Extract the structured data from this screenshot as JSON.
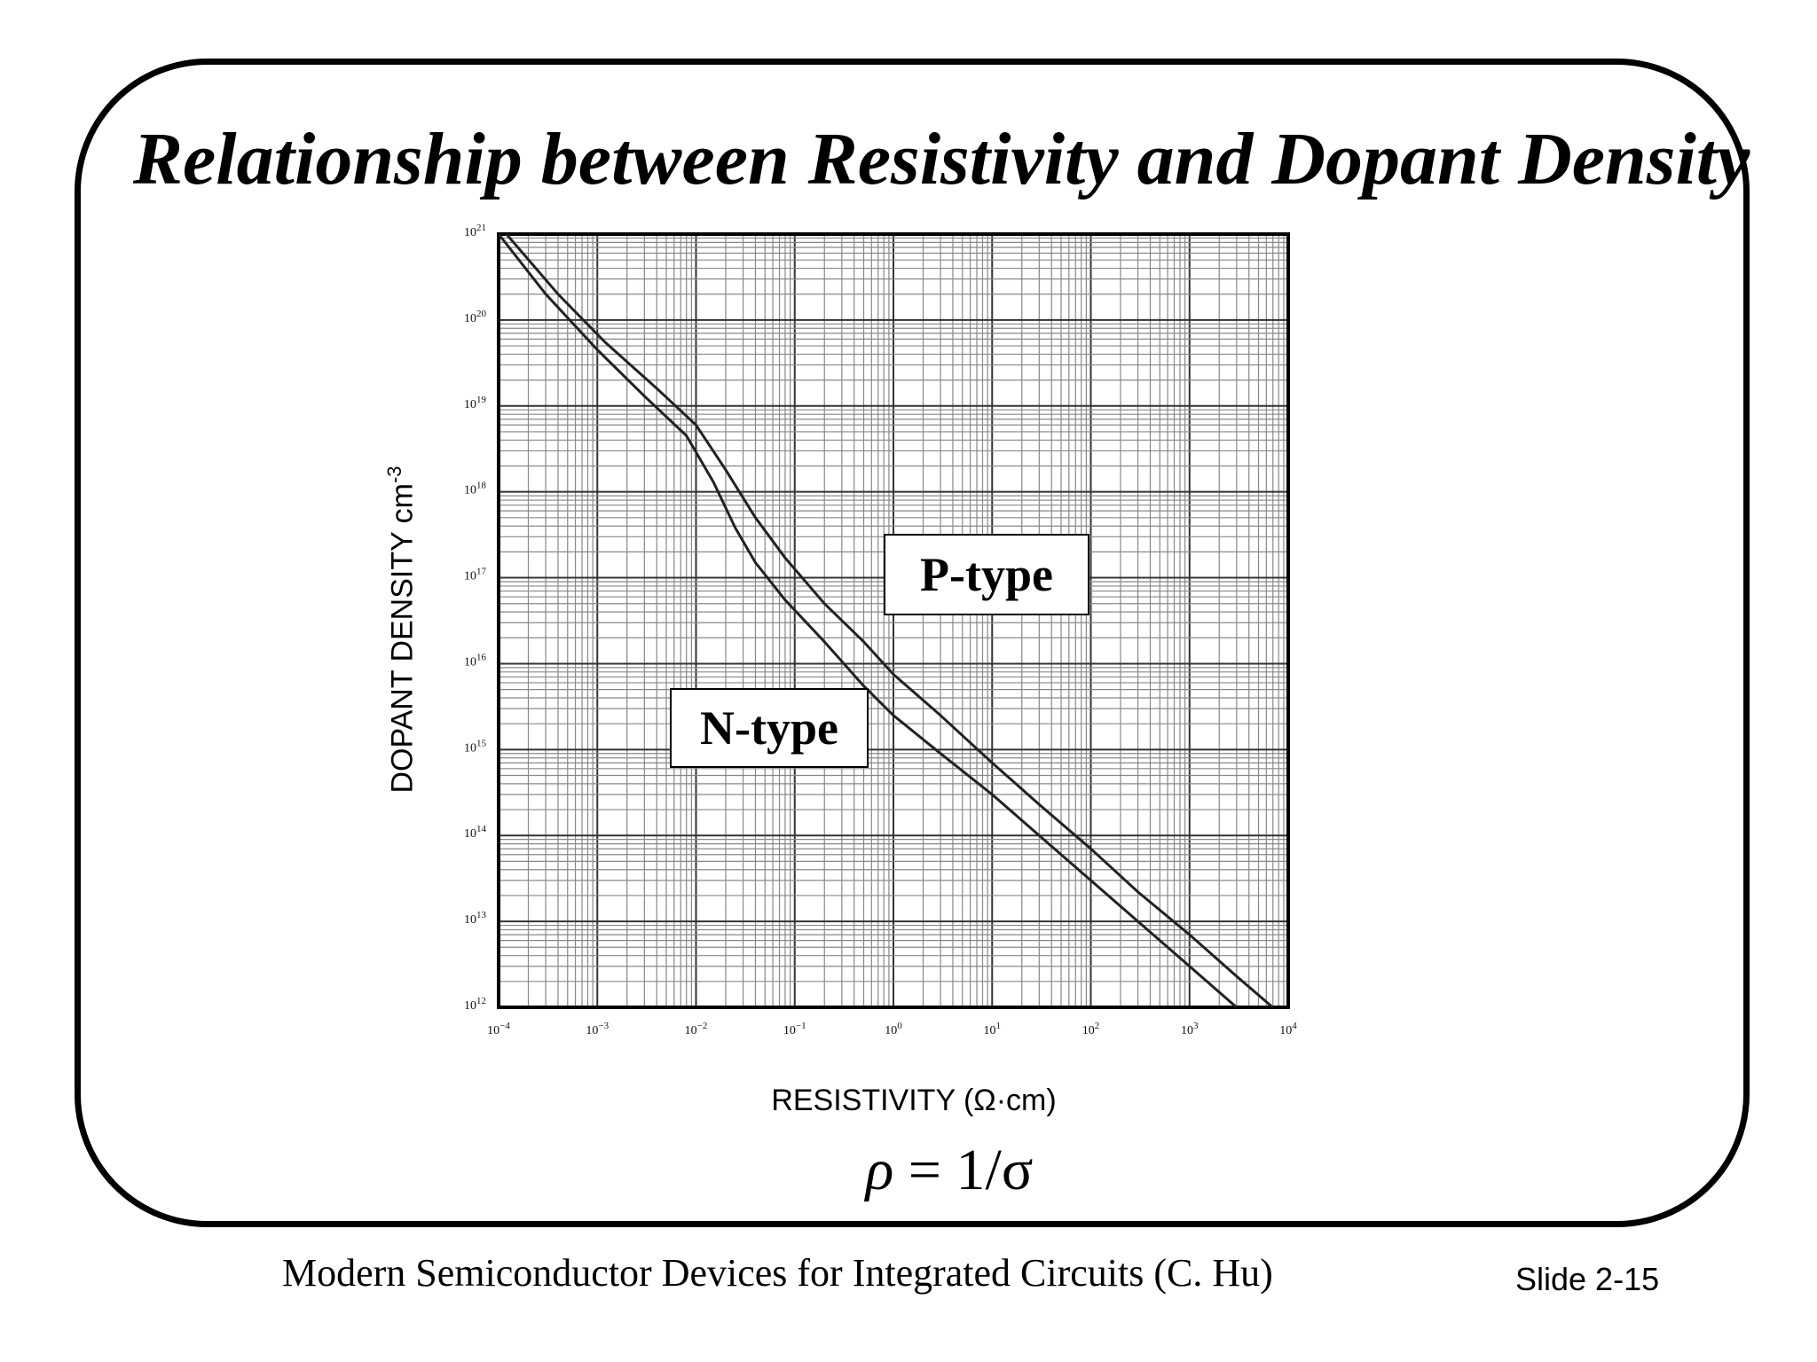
{
  "slide": {
    "title": "Relationship between Resistivity and Dopant Density",
    "formula_lhs": "ρ",
    "formula_rhs": "= 1/σ",
    "footer": "Modern Semiconductor Devices for Integrated Circuits (C. Hu)",
    "slide_number": "Slide 2-15"
  },
  "chart_data": {
    "type": "line",
    "xlabel": "RESISTIVITY  (Ω·cm)",
    "ylabel": "DOPANT DENSITY cm",
    "ylabel_exp": "-3",
    "xscale": "log",
    "yscale": "log",
    "xlim": [
      0.0001,
      10000
    ],
    "ylim": [
      1000000000000.0,
      1e+21
    ],
    "grid": true,
    "x_ticks": [
      {
        "base": "10",
        "exp": "−4",
        "value": 0.0001
      },
      {
        "base": "10",
        "exp": "−3",
        "value": 0.001
      },
      {
        "base": "10",
        "exp": "−2",
        "value": 0.01
      },
      {
        "base": "10",
        "exp": "−1",
        "value": 0.1
      },
      {
        "base": "10",
        "exp": "0",
        "value": 1
      },
      {
        "base": "10",
        "exp": "1",
        "value": 10
      },
      {
        "base": "10",
        "exp": "2",
        "value": 100
      },
      {
        "base": "10",
        "exp": "3",
        "value": 1000
      },
      {
        "base": "10",
        "exp": "4",
        "value": 10000
      }
    ],
    "y_ticks": [
      {
        "base": "10",
        "exp": "21",
        "value": 1e+21
      },
      {
        "base": "10",
        "exp": "20",
        "value": 1e+20
      },
      {
        "base": "10",
        "exp": "19",
        "value": 1e+19
      },
      {
        "base": "10",
        "exp": "18",
        "value": 1e+18
      },
      {
        "base": "10",
        "exp": "17",
        "value": 1e+17
      },
      {
        "base": "10",
        "exp": "16",
        "value": 1e+16
      },
      {
        "base": "10",
        "exp": "15",
        "value": 1000000000000000.0
      },
      {
        "base": "10",
        "exp": "14",
        "value": 100000000000000.0
      },
      {
        "base": "10",
        "exp": "13",
        "value": 10000000000000.0
      },
      {
        "base": "10",
        "exp": "12",
        "value": 1000000000000.0
      }
    ],
    "series": [
      {
        "name": "P-type",
        "color": "#222222",
        "points": [
          [
            0.00012,
            1e+21
          ],
          [
            0.0004,
            2e+20
          ],
          [
            0.0012,
            5.5e+19
          ],
          [
            0.004,
            1.6e+19
          ],
          [
            0.01,
            6e+18
          ],
          [
            0.02,
            1.8e+18
          ],
          [
            0.04,
            5e+17
          ],
          [
            0.08,
            1.7e+17
          ],
          [
            0.2,
            5e+16
          ],
          [
            0.5,
            1.8e+16
          ],
          [
            1,
            7500000000000000.0
          ],
          [
            3,
            2500000000000000.0
          ],
          [
            10,
            700000000000000.0
          ],
          [
            30,
            230000000000000.0
          ],
          [
            100,
            70000000000000.0
          ],
          [
            300,
            22000000000000.0
          ],
          [
            1000,
            7000000000000.0
          ],
          [
            3000,
            2300000000000.0
          ],
          [
            10000,
            700000000000.0
          ]
        ]
      },
      {
        "name": "N-type",
        "color": "#222222",
        "points": [
          [
            0.0001,
            1e+21
          ],
          [
            0.0003,
            2e+20
          ],
          [
            0.001,
            4.5e+19
          ],
          [
            0.003,
            1.3e+19
          ],
          [
            0.008,
            4.5e+18
          ],
          [
            0.015,
            1.3e+18
          ],
          [
            0.025,
            3.8e+17
          ],
          [
            0.04,
            1.5e+17
          ],
          [
            0.08,
            5.5e+16
          ],
          [
            0.2,
            1.8e+16
          ],
          [
            0.5,
            5500000000000000.0
          ],
          [
            1,
            2500000000000000.0
          ],
          [
            3,
            900000000000000.0
          ],
          [
            10,
            300000000000000.0
          ],
          [
            30,
            100000000000000.0
          ],
          [
            100,
            30000000000000.0
          ],
          [
            300,
            10000000000000.0
          ],
          [
            1000,
            3000000000000.0
          ],
          [
            3000,
            1000000000000.0
          ]
        ]
      }
    ]
  }
}
